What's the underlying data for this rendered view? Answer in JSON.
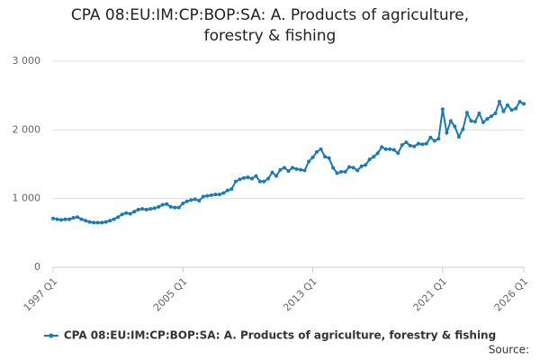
{
  "chart_data": {
    "type": "line",
    "title": "CPA 08:EU:IM:CP:BOP:SA: A. Products of agriculture, forestry & fishing",
    "source": "Source:",
    "categories": [
      "1997 Q1",
      null,
      null,
      null,
      null,
      null,
      null,
      null,
      null,
      null,
      null,
      null,
      null,
      null,
      null,
      null,
      null,
      null,
      null,
      null,
      null,
      null,
      null,
      null,
      null,
      null,
      null,
      null,
      null,
      null,
      null,
      null,
      "2005 Q1",
      null,
      null,
      null,
      null,
      null,
      null,
      null,
      null,
      null,
      null,
      null,
      null,
      null,
      null,
      null,
      null,
      null,
      null,
      null,
      null,
      null,
      null,
      null,
      null,
      null,
      null,
      null,
      null,
      null,
      null,
      null,
      "2013 Q1",
      null,
      null,
      null,
      null,
      null,
      null,
      null,
      null,
      null,
      null,
      null,
      null,
      null,
      null,
      null,
      null,
      null,
      null,
      null,
      null,
      null,
      null,
      null,
      null,
      null,
      null,
      null,
      null,
      null,
      null,
      null,
      "2021 Q1",
      null,
      null,
      null,
      null,
      null,
      null,
      null,
      null,
      null,
      null,
      null,
      null,
      null,
      null,
      null,
      null,
      null,
      null,
      null,
      "2026 Q1"
    ],
    "series": [
      {
        "name": "CPA 08:EU:IM:CP:BOP:SA: A. Products of agriculture, forestry & fishing",
        "color": "#1a7ab5",
        "values": [
          710,
          700,
          690,
          700,
          700,
          720,
          730,
          700,
          680,
          660,
          650,
          650,
          650,
          660,
          680,
          700,
          730,
          770,
          790,
          780,
          810,
          840,
          850,
          840,
          850,
          860,
          880,
          910,
          920,
          880,
          870,
          870,
          930,
          960,
          980,
          990,
          970,
          1030,
          1040,
          1050,
          1060,
          1060,
          1080,
          1120,
          1140,
          1250,
          1280,
          1300,
          1310,
          1290,
          1330,
          1250,
          1250,
          1290,
          1380,
          1330,
          1420,
          1450,
          1400,
          1450,
          1430,
          1420,
          1410,
          1540,
          1600,
          1680,
          1720,
          1610,
          1590,
          1450,
          1370,
          1390,
          1390,
          1460,
          1450,
          1410,
          1470,
          1490,
          1570,
          1610,
          1660,
          1750,
          1720,
          1720,
          1710,
          1660,
          1780,
          1820,
          1770,
          1760,
          1800,
          1790,
          1800,
          1890,
          1840,
          1870,
          2300,
          1960,
          2130,
          2050,
          1900,
          2010,
          2250,
          2130,
          2120,
          2240,
          2110,
          2160,
          2200,
          2240,
          2410,
          2270,
          2360,
          2290,
          2310,
          2410,
          2380
        ]
      }
    ],
    "ylim": [
      0,
      3000
    ],
    "yticks": [
      0,
      {
        "value": 1000,
        "label": "1 000"
      },
      {
        "value": 2000,
        "label": "2 000"
      },
      {
        "value": 3000,
        "label": "3 000"
      }
    ],
    "grid": true
  }
}
